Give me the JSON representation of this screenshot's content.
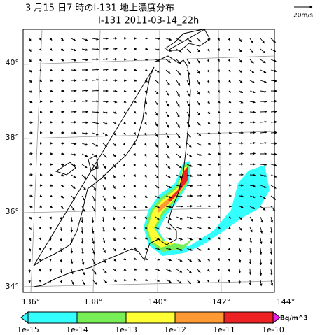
{
  "header": {
    "title": "3 月15 日7 時のI-131 地上濃度分布",
    "subtitle": "I-131 2011-03-14_22h",
    "scale_label": "20m/s"
  },
  "map": {
    "lat_labels": [
      "40°",
      "38°",
      "36°",
      "34°"
    ],
    "lon_labels": [
      "136°",
      "138°",
      "140°",
      "142°",
      "144°"
    ]
  },
  "colorbar": {
    "labels": [
      "1e-15",
      "1e-14",
      "1e-13",
      "1e-12",
      "1e-11",
      "1e-10"
    ],
    "unit": "Bq/m^3",
    "colors": [
      "#33ffff",
      "#77ee55",
      "#ffff33",
      "#ff9933",
      "#ee2222"
    ],
    "over_color": "#ee22ee"
  }
}
